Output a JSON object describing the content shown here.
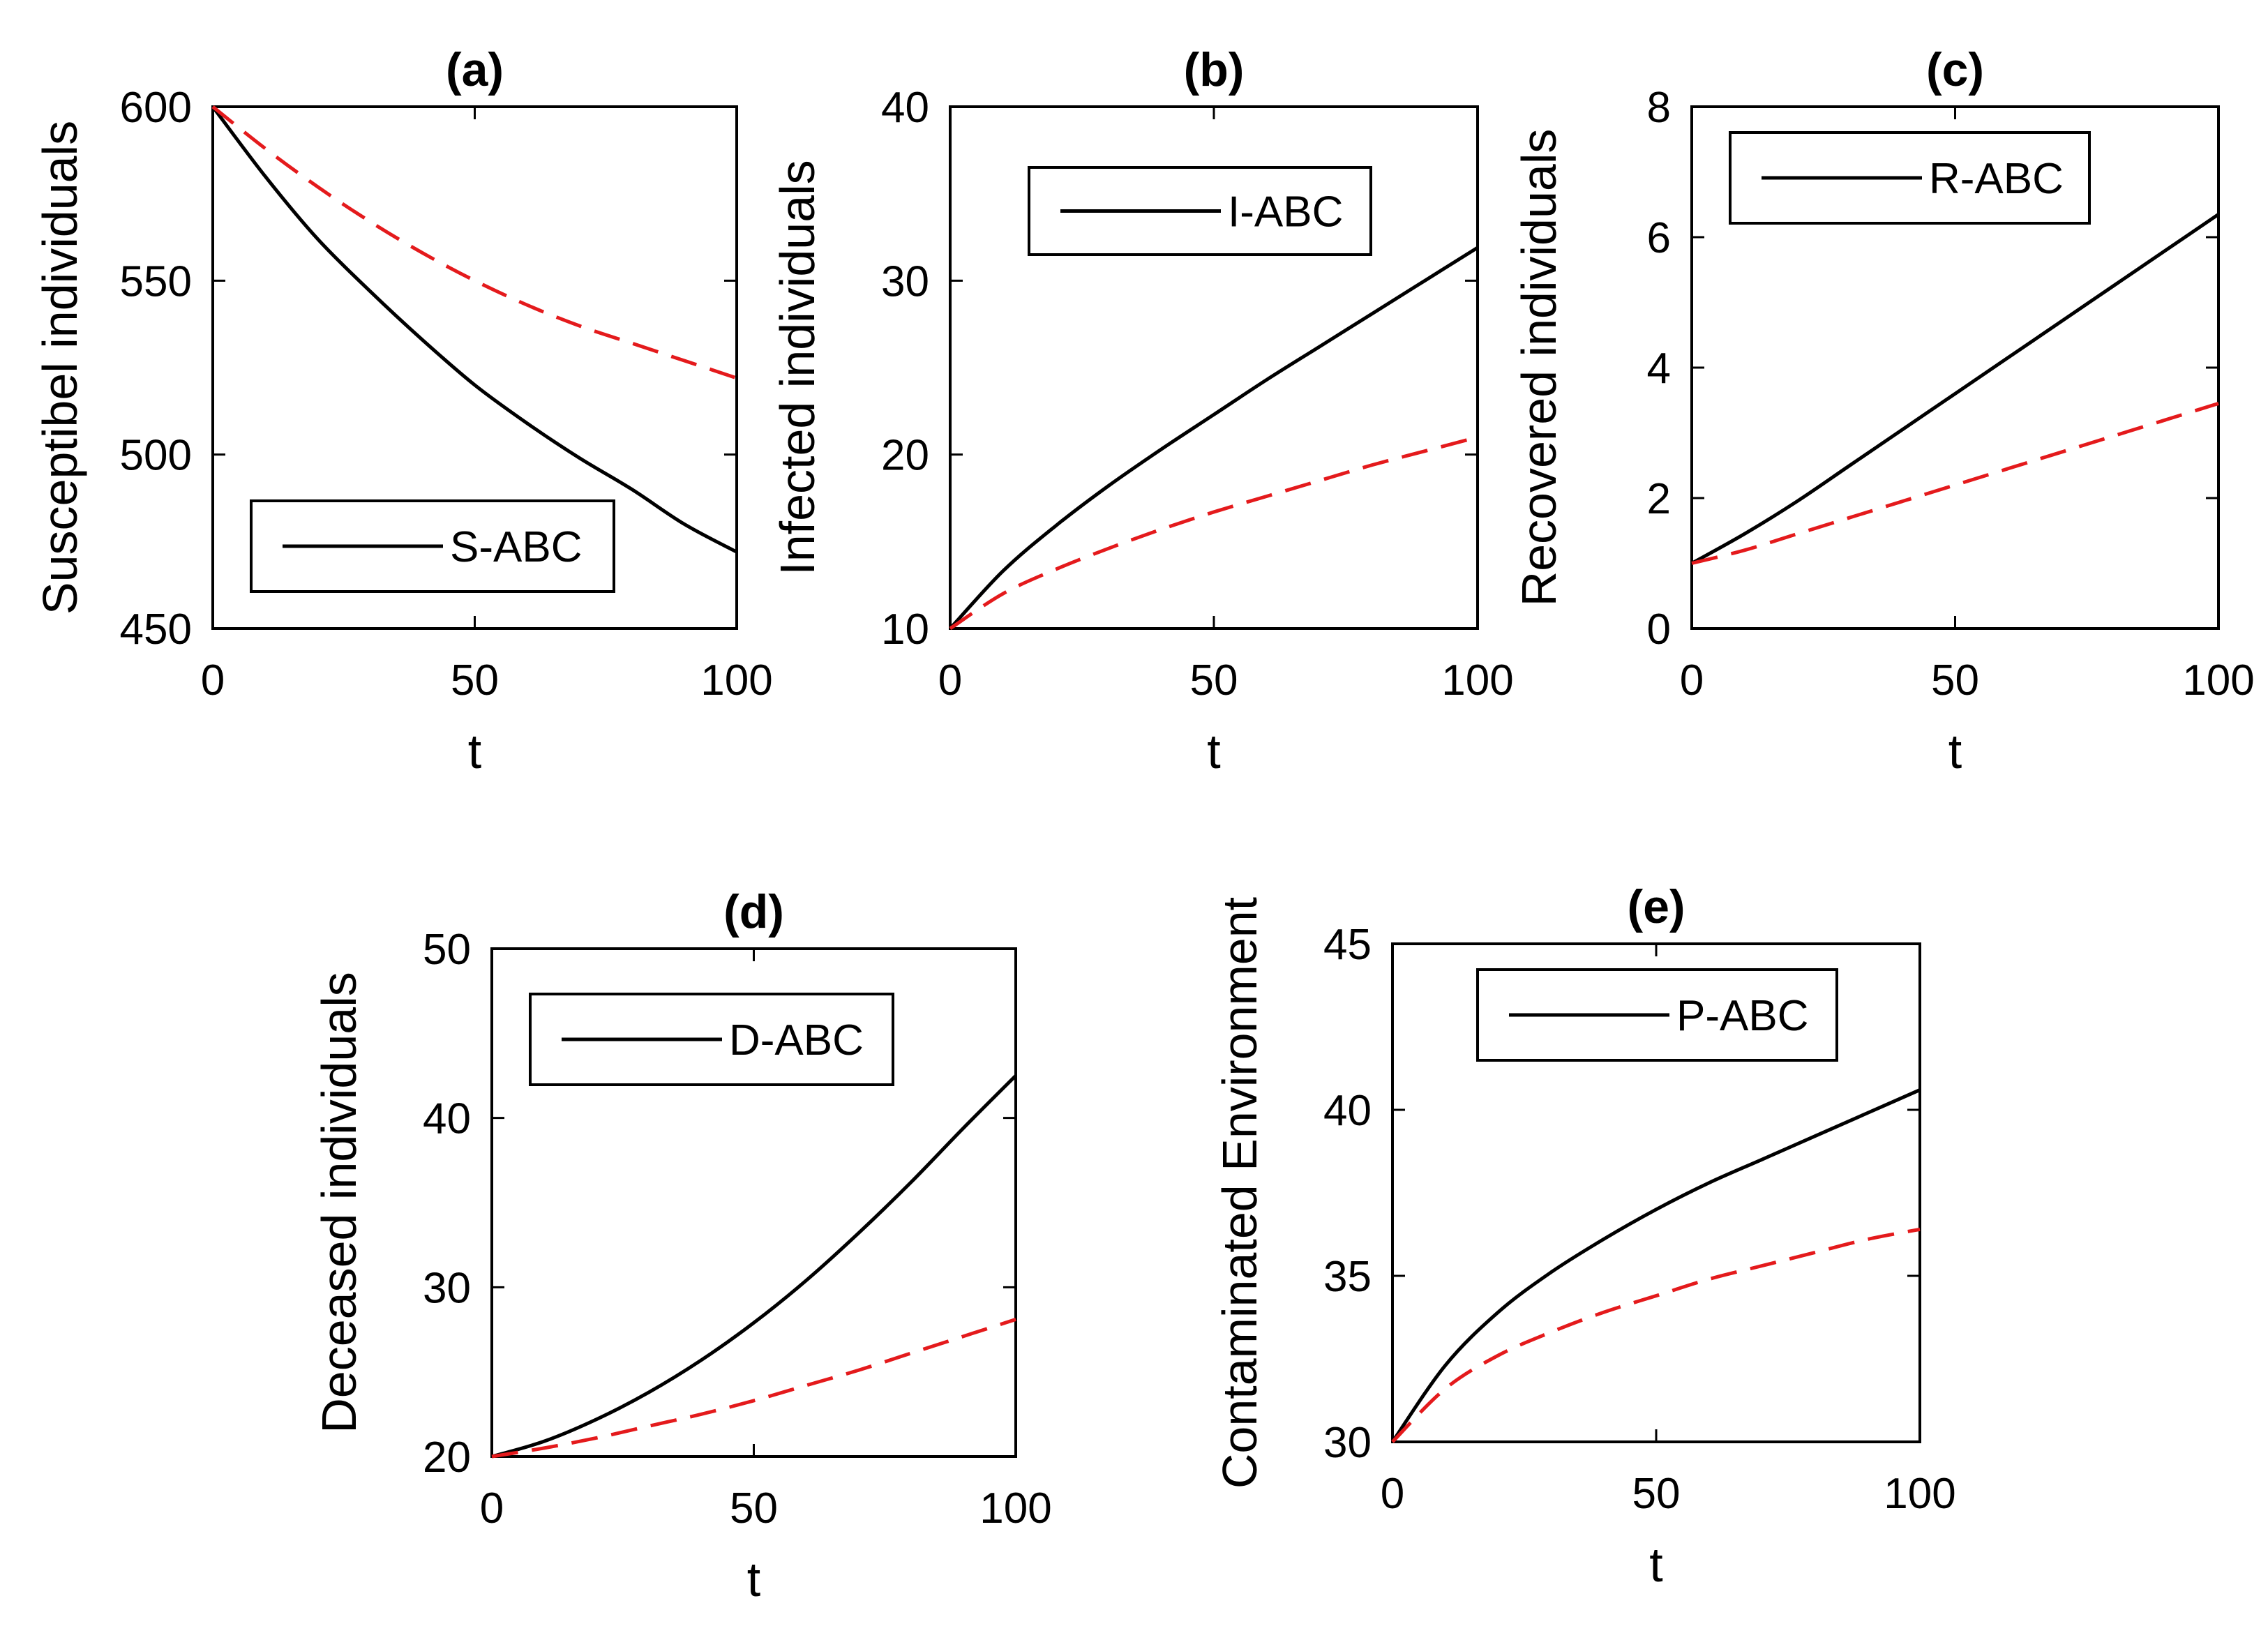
{
  "chart_data": [
    {
      "type": "line",
      "title": "(a)",
      "xlabel": "t",
      "ylabel": "Susceptibel individuals",
      "xlim": [
        0,
        100
      ],
      "ylim": [
        450,
        600
      ],
      "xticks": [
        0,
        50,
        100
      ],
      "yticks": [
        450,
        500,
        550,
        600
      ],
      "legend": {
        "placement": "bottom-center",
        "entries": [
          "S-ABC"
        ]
      },
      "series": [
        {
          "name": "S-ABC",
          "color": "#000000",
          "dash": "solid",
          "x": [
            0,
            10,
            20,
            30,
            40,
            50,
            60,
            70,
            80,
            90,
            100
          ],
          "y": [
            600,
            580,
            562,
            547,
            533,
            520,
            509,
            499,
            490,
            480,
            472
          ]
        },
        {
          "color": "#e41a1c",
          "dash": "dashed",
          "x": [
            0,
            10,
            20,
            30,
            40,
            50,
            60,
            70,
            80,
            90,
            100
          ],
          "y": [
            600,
            588,
            577,
            567,
            558,
            550,
            543,
            537,
            532,
            527,
            522
          ]
        }
      ]
    },
    {
      "type": "line",
      "title": "(b)",
      "xlabel": "t",
      "ylabel": "Infected individuals",
      "xlim": [
        0,
        100
      ],
      "ylim": [
        10,
        40
      ],
      "xticks": [
        0,
        50,
        100
      ],
      "yticks": [
        10,
        20,
        30,
        40
      ],
      "legend": {
        "placement": "top-center",
        "entries": [
          "I-ABC"
        ]
      },
      "series": [
        {
          "name": "I-ABC",
          "color": "#000000",
          "dash": "solid",
          "x": [
            0,
            10,
            20,
            30,
            40,
            50,
            60,
            70,
            80,
            90,
            100
          ],
          "y": [
            10,
            13.3,
            15.9,
            18.2,
            20.3,
            22.3,
            24.3,
            26.2,
            28.1,
            30.0,
            31.9
          ]
        },
        {
          "color": "#e41a1c",
          "dash": "dashed",
          "x": [
            0,
            10,
            20,
            30,
            40,
            50,
            60,
            70,
            80,
            90,
            100
          ],
          "y": [
            10,
            12.0,
            13.4,
            14.6,
            15.7,
            16.7,
            17.6,
            18.5,
            19.4,
            20.2,
            21.0
          ]
        }
      ]
    },
    {
      "type": "line",
      "title": "(c)",
      "xlabel": "t",
      "ylabel": "Recovered individuals",
      "xlim": [
        0,
        100
      ],
      "ylim": [
        0,
        8
      ],
      "xticks": [
        0,
        50,
        100
      ],
      "yticks": [
        0,
        2,
        4,
        6,
        8
      ],
      "legend": {
        "placement": "top-center",
        "entries": [
          "R-ABC"
        ]
      },
      "series": [
        {
          "name": "R-ABC",
          "color": "#000000",
          "dash": "solid",
          "x": [
            0,
            10,
            20,
            30,
            40,
            50,
            60,
            70,
            80,
            90,
            100
          ],
          "y": [
            1.0,
            1.45,
            1.95,
            2.5,
            3.05,
            3.6,
            4.15,
            4.7,
            5.25,
            5.8,
            6.35
          ]
        },
        {
          "color": "#e41a1c",
          "dash": "dashed",
          "x": [
            0,
            10,
            20,
            30,
            40,
            50,
            60,
            70,
            80,
            90,
            100
          ],
          "y": [
            1.0,
            1.2,
            1.45,
            1.7,
            1.95,
            2.2,
            2.45,
            2.7,
            2.95,
            3.2,
            3.45
          ]
        }
      ]
    },
    {
      "type": "line",
      "title": "(d)",
      "xlabel": "t",
      "ylabel": "Deceased individuals",
      "xlim": [
        0,
        100
      ],
      "ylim": [
        20,
        50
      ],
      "xticks": [
        0,
        50,
        100
      ],
      "yticks": [
        20,
        30,
        40,
        50
      ],
      "legend": {
        "placement": "top-center",
        "entries": [
          "D-ABC"
        ]
      },
      "series": [
        {
          "name": "D-ABC",
          "color": "#000000",
          "dash": "solid",
          "x": [
            0,
            10,
            20,
            30,
            40,
            50,
            60,
            70,
            80,
            90,
            100
          ],
          "y": [
            20,
            20.9,
            22.2,
            23.8,
            25.7,
            27.9,
            30.4,
            33.2,
            36.2,
            39.4,
            42.5
          ]
        },
        {
          "color": "#e41a1c",
          "dash": "dashed",
          "x": [
            0,
            10,
            20,
            30,
            40,
            50,
            60,
            70,
            80,
            90,
            100
          ],
          "y": [
            20,
            20.5,
            21.1,
            21.8,
            22.5,
            23.3,
            24.2,
            25.1,
            26.1,
            27.1,
            28.1
          ]
        }
      ]
    },
    {
      "type": "line",
      "title": "(e)",
      "xlabel": "t",
      "ylabel": "Contaminated Environment",
      "xlim": [
        0,
        100
      ],
      "ylim": [
        30,
        45
      ],
      "xticks": [
        0,
        50,
        100
      ],
      "yticks": [
        30,
        35,
        40,
        45
      ],
      "legend": {
        "placement": "top-center",
        "entries": [
          "P-ABC"
        ]
      },
      "series": [
        {
          "name": "P-ABC",
          "color": "#000000",
          "dash": "solid",
          "x": [
            0,
            10,
            20,
            30,
            40,
            50,
            60,
            70,
            80,
            90,
            100
          ],
          "y": [
            30,
            32.3,
            33.9,
            35.1,
            36.1,
            37.0,
            37.8,
            38.5,
            39.2,
            39.9,
            40.6
          ]
        },
        {
          "color": "#e41a1c",
          "dash": "dashed",
          "x": [
            0,
            10,
            20,
            30,
            40,
            50,
            60,
            70,
            80,
            90,
            100
          ],
          "y": [
            30,
            31.6,
            32.6,
            33.3,
            33.9,
            34.4,
            34.9,
            35.3,
            35.7,
            36.1,
            36.4
          ]
        }
      ]
    }
  ]
}
